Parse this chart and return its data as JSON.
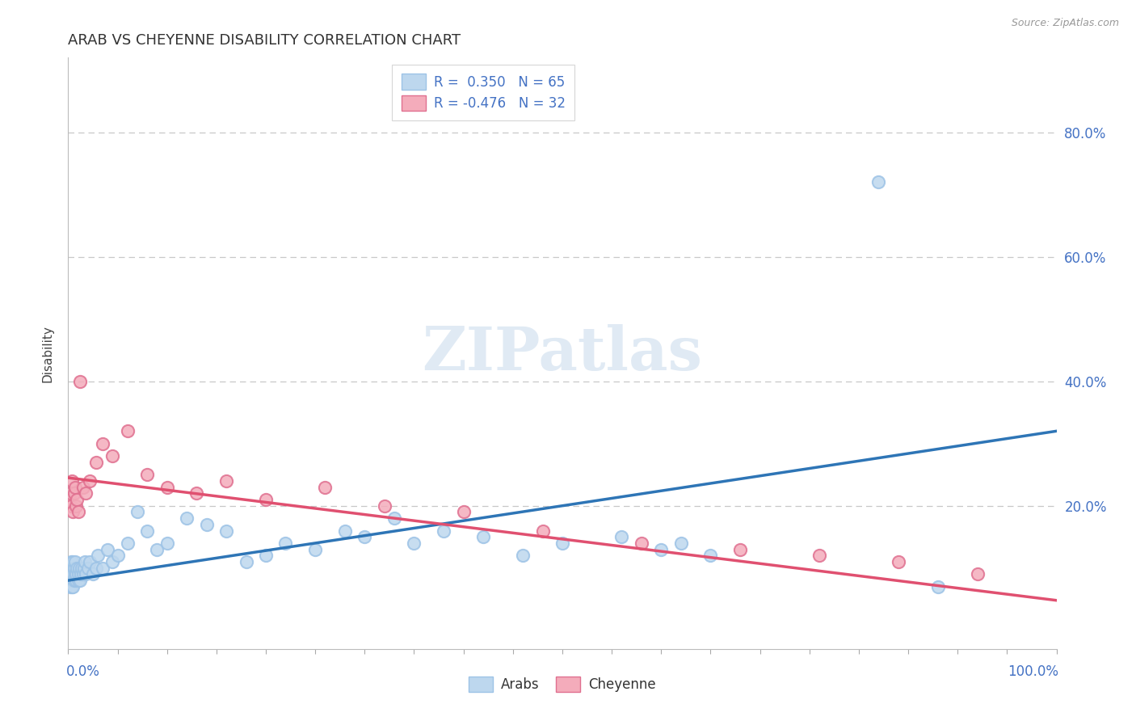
{
  "title": "ARAB VS CHEYENNE DISABILITY CORRELATION CHART",
  "source": "Source: ZipAtlas.com",
  "ylabel": "Disability",
  "right_ytick_vals": [
    0.2,
    0.4,
    0.6,
    0.8
  ],
  "right_ytick_labels": [
    "20.0%",
    "40.0%",
    "60.0%",
    "80.0%"
  ],
  "xlim": [
    0.0,
    1.0
  ],
  "ylim": [
    -0.03,
    0.92
  ],
  "arab_color_face": "#BDD7EE",
  "arab_color_edge": "#9DC3E6",
  "cheyenne_color_face": "#F4ACBB",
  "cheyenne_color_edge": "#E07090",
  "trend_arab_color": "#2E75B6",
  "trend_cheyenne_color": "#E05070",
  "arab_R": 0.35,
  "arab_N": 65,
  "cheyenne_R": -0.476,
  "cheyenne_N": 32,
  "background_color": "#FFFFFF",
  "grid_color": "#C8C8C8",
  "watermark_text": "ZIPatlas",
  "legend_color": "#4472C4",
  "arab_x": [
    0.001,
    0.002,
    0.002,
    0.002,
    0.003,
    0.003,
    0.003,
    0.004,
    0.004,
    0.004,
    0.005,
    0.005,
    0.005,
    0.006,
    0.006,
    0.007,
    0.007,
    0.008,
    0.008,
    0.009,
    0.01,
    0.01,
    0.011,
    0.012,
    0.013,
    0.014,
    0.015,
    0.016,
    0.017,
    0.018,
    0.02,
    0.022,
    0.025,
    0.028,
    0.03,
    0.035,
    0.04,
    0.045,
    0.05,
    0.06,
    0.07,
    0.08,
    0.09,
    0.1,
    0.12,
    0.14,
    0.16,
    0.18,
    0.2,
    0.22,
    0.25,
    0.28,
    0.3,
    0.33,
    0.35,
    0.38,
    0.42,
    0.46,
    0.5,
    0.56,
    0.6,
    0.62,
    0.65,
    0.82,
    0.88
  ],
  "arab_y": [
    0.08,
    0.07,
    0.09,
    0.1,
    0.08,
    0.09,
    0.11,
    0.07,
    0.08,
    0.1,
    0.09,
    0.11,
    0.07,
    0.08,
    0.1,
    0.09,
    0.11,
    0.08,
    0.09,
    0.1,
    0.08,
    0.09,
    0.1,
    0.08,
    0.09,
    0.1,
    0.09,
    0.1,
    0.11,
    0.09,
    0.1,
    0.11,
    0.09,
    0.1,
    0.12,
    0.1,
    0.13,
    0.11,
    0.12,
    0.14,
    0.19,
    0.16,
    0.13,
    0.14,
    0.18,
    0.17,
    0.16,
    0.11,
    0.12,
    0.14,
    0.13,
    0.16,
    0.15,
    0.18,
    0.14,
    0.16,
    0.15,
    0.12,
    0.14,
    0.15,
    0.13,
    0.14,
    0.12,
    0.72,
    0.07
  ],
  "cheyenne_x": [
    0.001,
    0.002,
    0.003,
    0.004,
    0.005,
    0.006,
    0.007,
    0.008,
    0.009,
    0.01,
    0.012,
    0.015,
    0.018,
    0.022,
    0.028,
    0.035,
    0.045,
    0.06,
    0.08,
    0.1,
    0.13,
    0.16,
    0.2,
    0.26,
    0.32,
    0.4,
    0.48,
    0.58,
    0.68,
    0.76,
    0.84,
    0.92
  ],
  "cheyenne_y": [
    0.21,
    0.22,
    0.2,
    0.24,
    0.19,
    0.22,
    0.23,
    0.2,
    0.21,
    0.19,
    0.4,
    0.23,
    0.22,
    0.24,
    0.27,
    0.3,
    0.28,
    0.32,
    0.25,
    0.23,
    0.22,
    0.24,
    0.21,
    0.23,
    0.2,
    0.19,
    0.16,
    0.14,
    0.13,
    0.12,
    0.11,
    0.09
  ],
  "arab_trendline": [
    0.08,
    0.32
  ],
  "cheyenne_trendline": [
    0.245,
    0.048
  ]
}
